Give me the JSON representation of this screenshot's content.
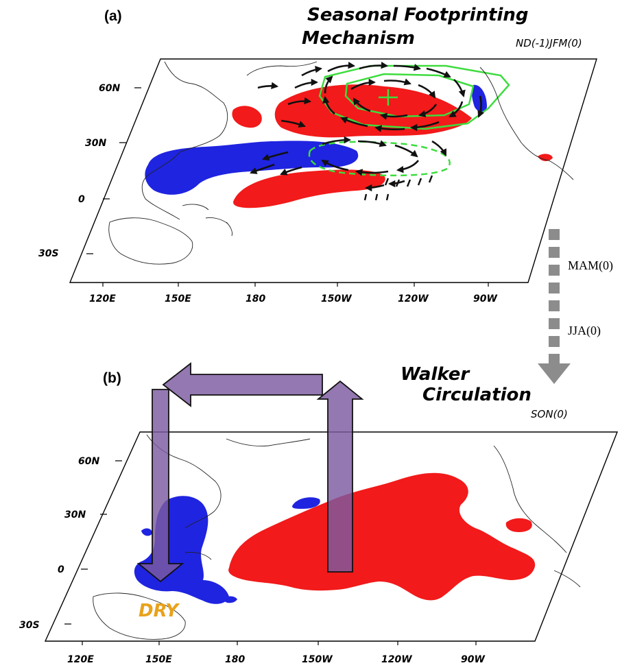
{
  "panel_a": {
    "label": "(a)",
    "title_line1": "Seasonal Footprinting",
    "title_line2": "Mechanism",
    "season": "ND(-1)JFM(0)",
    "lat_labels": [
      "60N",
      "30N",
      "0",
      "30S"
    ],
    "lon_labels": [
      "120E",
      "150E",
      "180",
      "150W",
      "120W",
      "90W"
    ]
  },
  "progression": {
    "step1": "MAM(0)",
    "step2": "JJA(0)"
  },
  "panel_b": {
    "label": "(b)",
    "title_line1": "Walker",
    "title_line2": "Circulation",
    "season": "SON(0)",
    "dry_label": "DRY",
    "lat_labels": [
      "60N",
      "30N",
      "0",
      "30S"
    ],
    "lon_labels": [
      "120E",
      "150E",
      "180",
      "150W",
      "120W",
      "90W"
    ]
  },
  "colors": {
    "positive": "#f21a1a",
    "negative": "#1f24e0",
    "contour": "#3ddc3d",
    "walker_arrow": "#7c5aa0",
    "progression_arrow": "#8c8c8c",
    "dry": "#e8a21b"
  }
}
